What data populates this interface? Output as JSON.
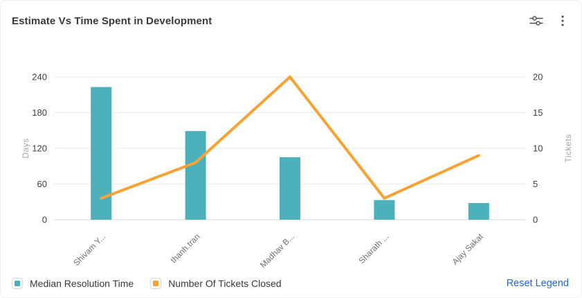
{
  "header": {
    "title": "Estimate Vs Time Spent in Development",
    "settings_icon": "filter-sliders-icon",
    "menu_icon": "kebab-menu-icon"
  },
  "chart_data": {
    "type": "combo-bar-line",
    "categories": [
      "Shivam Y...",
      "thanh.tran",
      "Madhav B...",
      "Sharath ...",
      "Ajay Sakat"
    ],
    "series": [
      {
        "name": "Median Resolution Time",
        "type": "bar",
        "axis": "left",
        "color": "#4DB1BC",
        "values": [
          223,
          149,
          105,
          33,
          28
        ]
      },
      {
        "name": "Number Of Tickets Closed",
        "type": "line",
        "axis": "right",
        "color": "#F7A232",
        "values": [
          3,
          8,
          20,
          3,
          9
        ]
      }
    ],
    "left_axis": {
      "label": "Days",
      "ticks": [
        0,
        60,
        120,
        180,
        240
      ],
      "max": 240
    },
    "right_axis": {
      "label": "Tickets",
      "ticks": [
        0,
        5,
        10,
        15,
        20
      ],
      "max": 20
    },
    "grid": true,
    "legend_position": "bottom"
  },
  "legend": {
    "items": [
      {
        "label": "Median Resolution Time",
        "color": "#4DB1BC"
      },
      {
        "label": "Number Of Tickets Closed",
        "color": "#F7A232"
      }
    ],
    "reset_label": "Reset Legend",
    "reset_color": "#2368D0"
  },
  "style": {
    "grid_color": "#ededed",
    "axis_line_color": "#e0e0e0",
    "tick_label_color": "#3c4043",
    "axis_name_color": "#a6a6a6",
    "category_label_color": "#6b6f73",
    "icon_color": "#4a4f54"
  }
}
